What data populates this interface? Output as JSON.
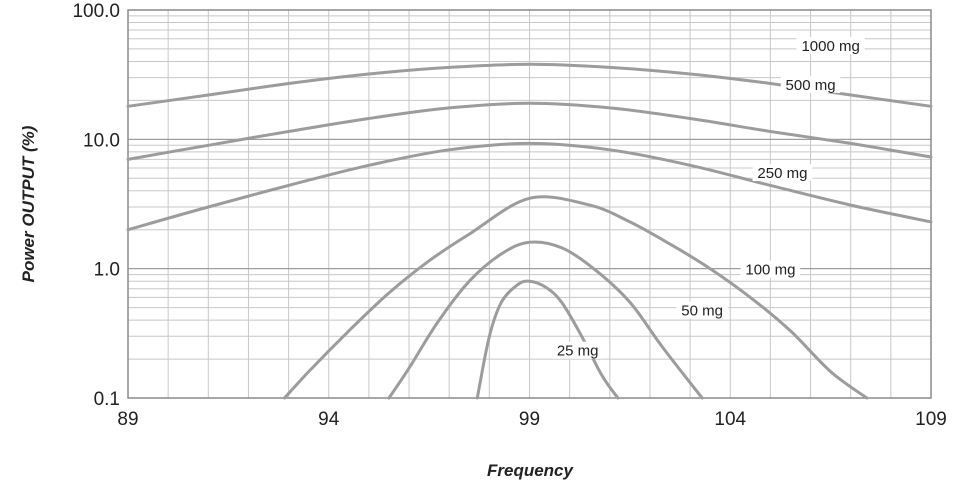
{
  "chart_data": {
    "type": "line",
    "xlabel": "Frequency",
    "ylabel": "Power OUTPUT (%)",
    "xlim": [
      89,
      109
    ],
    "ylim": [
      0.1,
      100
    ],
    "y_scale": "log",
    "grid": true,
    "x_ticks": [
      "89",
      "94",
      "99",
      "104",
      "109"
    ],
    "y_ticks": [
      "100.0",
      "10.0",
      "1.0",
      "0.1"
    ],
    "series": [
      {
        "name": "1000 mg",
        "x": [
          89,
          91,
          93,
          95,
          97,
          99,
          101,
          103,
          105,
          107,
          109
        ],
        "y": [
          18,
          22,
          27,
          32,
          36,
          38,
          36,
          32,
          27,
          22,
          18
        ]
      },
      {
        "name": "500 mg",
        "x": [
          89,
          91,
          93,
          95,
          97,
          99,
          101,
          103,
          105,
          107,
          109
        ],
        "y": [
          7,
          9,
          11.5,
          14.5,
          17.5,
          19,
          17.5,
          14.5,
          11.5,
          9.3,
          7.3
        ]
      },
      {
        "name": "250 mg",
        "x": [
          89,
          91,
          93,
          95,
          97,
          99,
          101,
          103,
          105,
          107,
          109
        ],
        "y": [
          2,
          3,
          4.4,
          6.3,
          8.3,
          9.3,
          8.3,
          6.3,
          4.4,
          3.1,
          2.3
        ]
      },
      {
        "name": "100 mg",
        "x": [
          92.9,
          93.5,
          94.5,
          95.5,
          96.5,
          97.5,
          99,
          100.5,
          101.5,
          102.5,
          103.5,
          104.5,
          105.5,
          106.5,
          107.4
        ],
        "y": [
          0.1,
          0.16,
          0.33,
          0.65,
          1.15,
          1.85,
          3.5,
          3.1,
          2.3,
          1.55,
          1.0,
          0.6,
          0.33,
          0.16,
          0.1
        ]
      },
      {
        "name": "50 mg",
        "x": [
          95.5,
          96,
          96.7,
          97.5,
          98.3,
          99,
          99.8,
          100.6,
          101.5,
          102.3,
          103.3
        ],
        "y": [
          0.1,
          0.17,
          0.38,
          0.8,
          1.3,
          1.6,
          1.45,
          1.0,
          0.55,
          0.25,
          0.1
        ]
      },
      {
        "name": "25 mg",
        "x": [
          97.7,
          98,
          98.3,
          98.7,
          99,
          99.4,
          99.8,
          100.3,
          100.8,
          101.2
        ],
        "y": [
          0.1,
          0.3,
          0.55,
          0.75,
          0.8,
          0.72,
          0.55,
          0.3,
          0.15,
          0.1
        ]
      }
    ]
  }
}
